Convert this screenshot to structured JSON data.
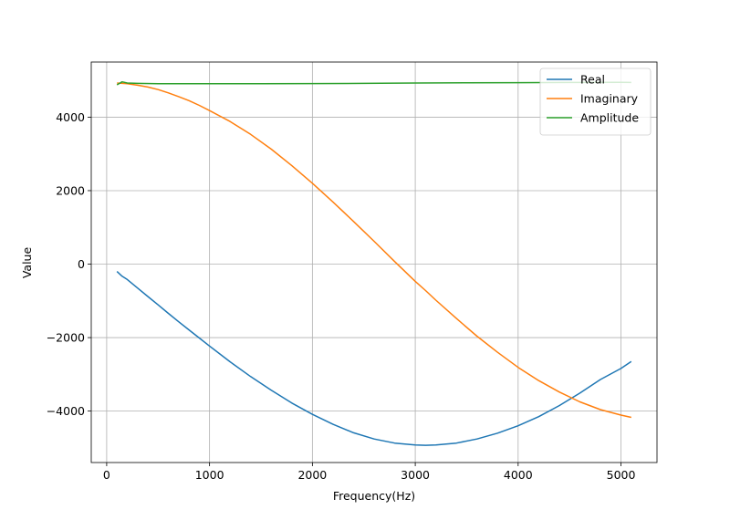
{
  "chart_data": {
    "type": "line",
    "title": "",
    "xlabel": "Frequency(Hz)",
    "ylabel": "Value",
    "xlim": [
      -150,
      5350
    ],
    "ylim": [
      -5400,
      5500
    ],
    "xticks": [
      0,
      1000,
      2000,
      3000,
      4000,
      5000
    ],
    "xtick_labels": [
      "0",
      "1000",
      "2000",
      "3000",
      "4000",
      "5000"
    ],
    "yticks": [
      -4000,
      -2000,
      0,
      2000,
      4000
    ],
    "ytick_labels": [
      "−4000",
      "−2000",
      "0",
      "2000",
      "4000"
    ],
    "grid": true,
    "legend_position": "top-right",
    "series": [
      {
        "name": "Real",
        "color": "#1f77b4",
        "x": [
          100,
          150,
          200,
          300,
          400,
          500,
          600,
          700,
          800,
          900,
          1000,
          1200,
          1400,
          1600,
          1800,
          2000,
          2200,
          2400,
          2600,
          2800,
          3000,
          3100,
          3200,
          3400,
          3600,
          3800,
          4000,
          4200,
          4400,
          4600,
          4800,
          5000,
          5100
        ],
        "values": [
          -200,
          -330,
          -420,
          -650,
          -880,
          -1110,
          -1340,
          -1570,
          -1790,
          -2010,
          -2230,
          -2660,
          -3060,
          -3430,
          -3780,
          -4090,
          -4360,
          -4590,
          -4760,
          -4870,
          -4920,
          -4930,
          -4920,
          -4870,
          -4760,
          -4600,
          -4400,
          -4150,
          -3850,
          -3510,
          -3140,
          -2840,
          -2650
        ]
      },
      {
        "name": "Imaginary",
        "color": "#ff7f0e",
        "x": [
          100,
          200,
          300,
          400,
          500,
          600,
          700,
          800,
          900,
          1000,
          1200,
          1400,
          1600,
          1800,
          2000,
          2200,
          2400,
          2600,
          2800,
          3000,
          3100,
          3200,
          3400,
          3600,
          3800,
          4000,
          4200,
          4400,
          4600,
          4800,
          5000,
          5100
        ],
        "values": [
          4930,
          4910,
          4870,
          4820,
          4750,
          4660,
          4560,
          4450,
          4320,
          4180,
          3880,
          3530,
          3130,
          2680,
          2200,
          1690,
          1160,
          620,
          70,
          -470,
          -720,
          -980,
          -1480,
          -1960,
          -2400,
          -2810,
          -3170,
          -3480,
          -3750,
          -3960,
          -4110,
          -4170
        ]
      },
      {
        "name": "Amplitude",
        "color": "#2ca02c",
        "x": [
          100,
          150,
          200,
          300,
          500,
          1000,
          1500,
          2000,
          2500,
          3000,
          3500,
          4000,
          4500,
          5000,
          5100
        ],
        "values": [
          4880,
          4960,
          4930,
          4920,
          4910,
          4910,
          4910,
          4915,
          4920,
          4930,
          4935,
          4940,
          4945,
          4950,
          4945
        ]
      }
    ]
  }
}
